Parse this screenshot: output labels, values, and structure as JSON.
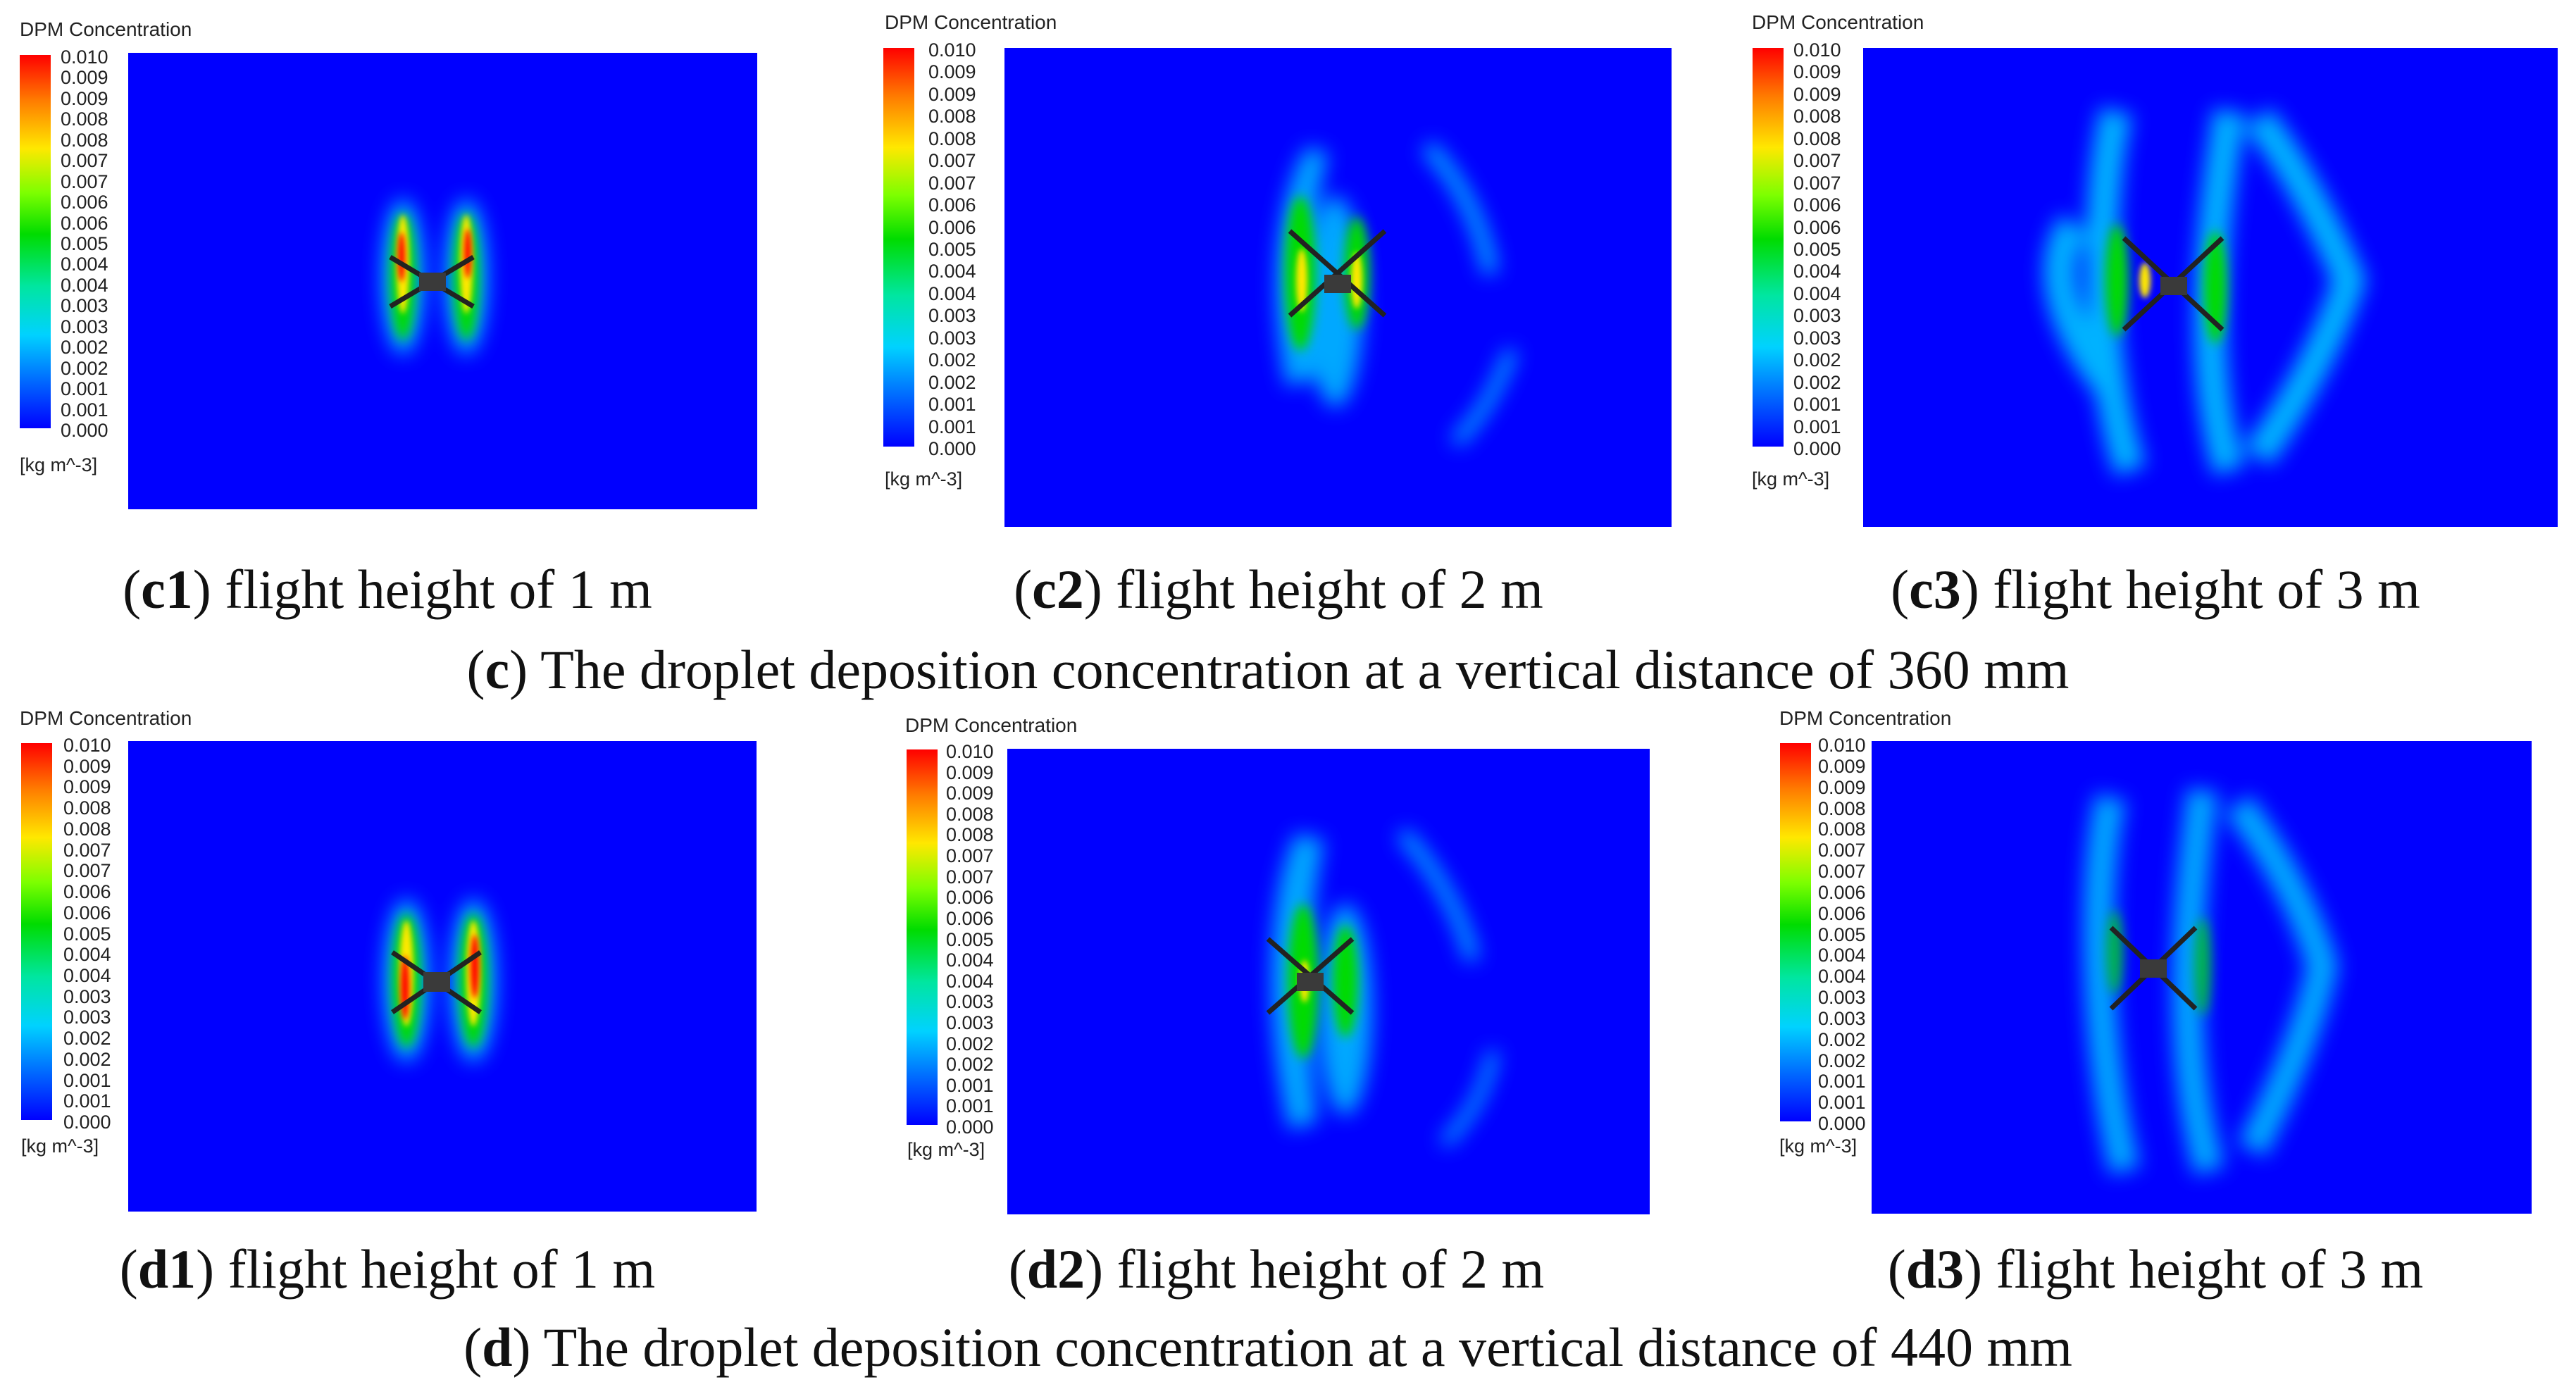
{
  "figure": {
    "colorbar": {
      "title": "DPM Concentration",
      "ticks": [
        "0.010",
        "0.009",
        "0.009",
        "0.008",
        "0.008",
        "0.007",
        "0.007",
        "0.006",
        "0.006",
        "0.005",
        "0.004",
        "0.004",
        "0.003",
        "0.003",
        "0.002",
        "0.002",
        "0.001",
        "0.001",
        "0.000"
      ],
      "unit": "[kg m^-3]"
    },
    "colors": {
      "background": "#0000ff",
      "low": "#00d2ff",
      "mid": "#00dc00",
      "high": "#ff0000",
      "drone": "#3a3a3a"
    },
    "groups": {
      "c": {
        "label": "c",
        "caption": " The droplet deposition concentration at a vertical distance of 360 mm",
        "panels": [
          {
            "label": "c1",
            "caption": " flight height of 1 m"
          },
          {
            "label": "c2",
            "caption": " flight height of 2 m"
          },
          {
            "label": "c3",
            "caption": " flight height of 3 m"
          }
        ]
      },
      "d": {
        "label": "d",
        "caption": " The droplet deposition concentration at a vertical distance of 440 mm",
        "panels": [
          {
            "label": "d1",
            "caption": " flight height of 1 m"
          },
          {
            "label": "d2",
            "caption": " flight height of 2 m"
          },
          {
            "label": "d3",
            "caption": " flight height of 3 m"
          }
        ]
      }
    }
  }
}
